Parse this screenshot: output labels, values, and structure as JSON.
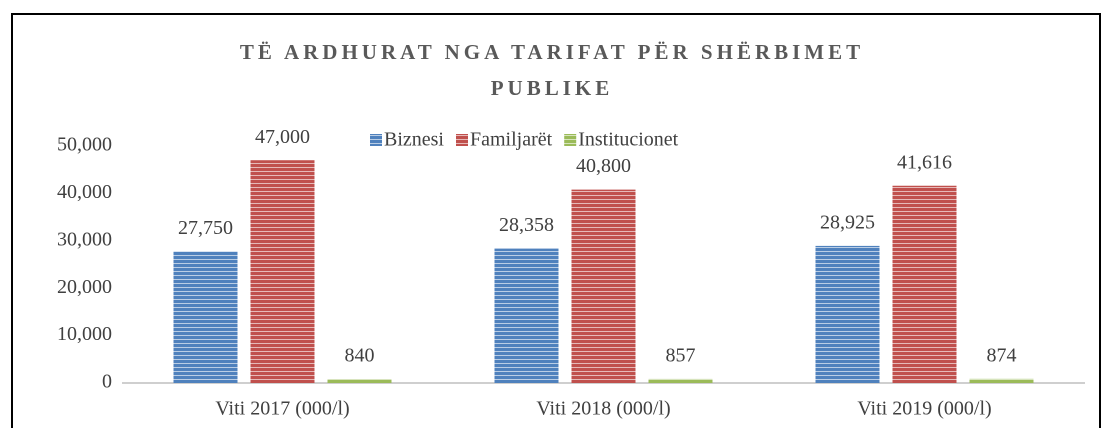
{
  "chart_data": {
    "type": "bar",
    "title": "TË ARDHURAT NGA TARIFAT PËR SHËRBIMET PUBLIKE",
    "categories": [
      "Viti 2017 (000/l)",
      "Viti 2018 (000/l)",
      "Viti 2019 (000/l)"
    ],
    "series": [
      {
        "name": "Biznesi",
        "color": "#4f81bd",
        "values": [
          27750,
          28358,
          28925
        ],
        "value_labels": [
          "27,750",
          "28,358",
          "28,925"
        ]
      },
      {
        "name": "Familjarët",
        "color": "#c0504d",
        "values": [
          47000,
          40800,
          41616
        ],
        "value_labels": [
          "47,000",
          "40,800",
          "41,616"
        ]
      },
      {
        "name": "Institucionet",
        "color": "#9bbb59",
        "values": [
          840,
          857,
          874
        ]
      }
    ],
    "ylim": [
      0,
      50000
    ],
    "yticks": [
      0,
      {
        "value": 10000,
        "label": "10,000"
      },
      {
        "value": 20000,
        "label": "20,000"
      },
      {
        "value": 30000,
        "label": "30,000"
      },
      {
        "value": 40000,
        "label": "40,000"
      },
      {
        "value": 50000,
        "label": "50,000"
      }
    ],
    "grid": false,
    "legend": "top"
  }
}
